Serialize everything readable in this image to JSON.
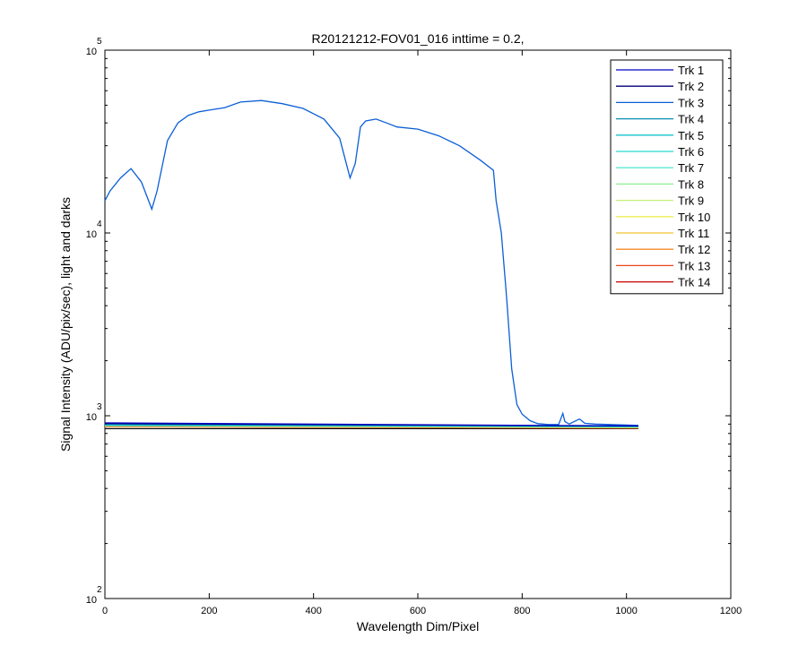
{
  "chart_data": {
    "type": "line",
    "title": "R20121212-FOV01_016 inttime = 0.2,",
    "xlabel": "Wavelength Dim/Pixel",
    "ylabel": "Signal Intensity (ADU/pix/sec), light and darks",
    "xlim": [
      0,
      1200
    ],
    "ylim": [
      100,
      100000
    ],
    "yscale": "log",
    "grid": false,
    "legend_position": "top-right",
    "x_ticks": [
      {
        "value": 0,
        "label": "0"
      },
      {
        "value": 200,
        "label": "200"
      },
      {
        "value": 400,
        "label": "400"
      },
      {
        "value": 600,
        "label": "600"
      },
      {
        "value": 800,
        "label": "800"
      },
      {
        "value": 1000,
        "label": "1000"
      },
      {
        "value": 1200,
        "label": "1200"
      }
    ],
    "y_ticks": [
      {
        "value": 100,
        "base": "10",
        "exp": "2"
      },
      {
        "value": 1000,
        "base": "10",
        "exp": "3"
      },
      {
        "value": 10000,
        "base": "10",
        "exp": "4"
      },
      {
        "value": 100000,
        "base": "10",
        "exp": "5"
      }
    ],
    "series": [
      {
        "name": "Trk 1",
        "color": "#0000c8",
        "x": [
          0,
          1023
        ],
        "y": [
          915,
          880
        ]
      },
      {
        "name": "Trk 2",
        "color": "#00007a",
        "x": [
          0,
          1023
        ],
        "y": [
          905,
          878
        ]
      },
      {
        "name": "Trk 3",
        "color": "#0b5fd6",
        "x": [
          0,
          10,
          30,
          50,
          70,
          90,
          100,
          120,
          140,
          160,
          180,
          200,
          230,
          260,
          300,
          340,
          380,
          420,
          450,
          470,
          480,
          490,
          500,
          520,
          540,
          560,
          600,
          640,
          680,
          720,
          745,
          750,
          760,
          770,
          780,
          790,
          800,
          815,
          830,
          850,
          870,
          878,
          882,
          890,
          910,
          920,
          940,
          1023
        ],
        "y": [
          15000,
          17000,
          20000,
          22500,
          19000,
          13500,
          17000,
          32000,
          40000,
          44000,
          46000,
          47000,
          48500,
          52000,
          53000,
          51000,
          48000,
          42000,
          33000,
          20000,
          24000,
          38000,
          41000,
          42000,
          40000,
          38000,
          37000,
          34000,
          30000,
          25000,
          22000,
          15000,
          10000,
          4500,
          1800,
          1150,
          1020,
          940,
          905,
          895,
          895,
          1030,
          930,
          900,
          960,
          910,
          900,
          885
        ]
      },
      {
        "name": "Trk 4",
        "color": "#0a8ab3",
        "x": [
          0,
          1023
        ],
        "y": [
          895,
          875
        ]
      },
      {
        "name": "Trk 5",
        "color": "#12c4cf",
        "x": [
          0,
          1023
        ],
        "y": [
          890,
          872
        ]
      },
      {
        "name": "Trk 6",
        "color": "#25d9d0",
        "x": [
          0,
          1023
        ],
        "y": [
          887,
          870
        ]
      },
      {
        "name": "Trk 7",
        "color": "#5ee8d0",
        "x": [
          0,
          1023
        ],
        "y": [
          884,
          868
        ]
      },
      {
        "name": "Trk 8",
        "color": "#90ee90",
        "x": [
          0,
          1023
        ],
        "y": [
          882,
          866
        ]
      },
      {
        "name": "Trk 9",
        "color": "#c8f07a",
        "x": [
          0,
          1023
        ],
        "y": [
          880,
          864
        ]
      },
      {
        "name": "Trk 10",
        "color": "#eeee55",
        "x": [
          0,
          1023
        ],
        "y": [
          878,
          862
        ]
      },
      {
        "name": "Trk 11",
        "color": "#f2c230",
        "x": [
          0,
          1023
        ],
        "y": [
          876,
          860
        ]
      },
      {
        "name": "Trk 12",
        "color": "#f58a2a",
        "x": [
          0,
          1023
        ],
        "y": [
          874,
          858
        ]
      },
      {
        "name": "Trk 13",
        "color": "#ee4418",
        "x": [
          0,
          1023
        ],
        "y": [
          872,
          856
        ]
      },
      {
        "name": "Trk 14",
        "color": "#c80000",
        "x": [
          0,
          1023
        ],
        "y": [
          870,
          854
        ]
      },
      {
        "name": "",
        "color": "#000000",
        "x": [
          0,
          1023
        ],
        "y": [
          850,
          850
        ]
      }
    ]
  }
}
